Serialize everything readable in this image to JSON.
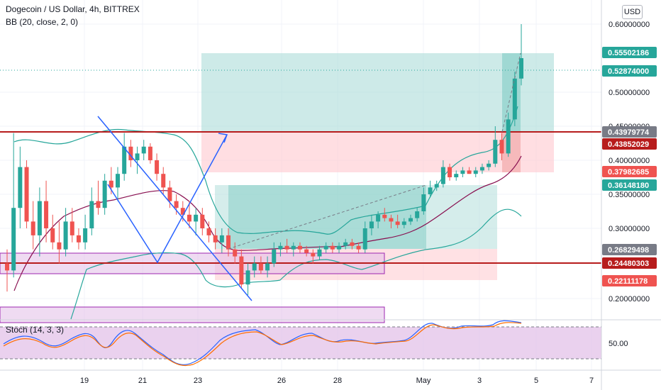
{
  "header": {
    "symbol_line": "Dogecoin / US Dollar, 4h, BITTREX",
    "indicator_line": "BB (20, close, 2, 0)",
    "currency_button": "USD"
  },
  "colors": {
    "up": "#26a69a",
    "down": "#ef5350",
    "bb_band": "#26a69a",
    "bb_basis": "#880e4f",
    "resistance": "#b71c1c",
    "purple_box": "#9c27b0",
    "profit_zone": "#b2dfdb",
    "loss_zone": "#ffcdd2",
    "stoch_k": "#2962ff",
    "stoch_d": "#ff6d00",
    "stoch_bg": "#e1bee7"
  },
  "price_axis": {
    "ticks": [
      "0.60000000",
      "0.50000000",
      "0.45000000",
      "0.40000000",
      "0.35000000",
      "0.30000000",
      "0.20000000"
    ],
    "tags": [
      {
        "label": "0.55502186",
        "color": "#26a69a"
      },
      {
        "label": "0.52874000",
        "color": "#26a69a"
      },
      {
        "label": "0.43979774",
        "color": "#787b86"
      },
      {
        "label": "0.43852029",
        "color": "#b71c1c"
      },
      {
        "label": "0.37982685",
        "color": "#ef5350"
      },
      {
        "label": "0.36148180",
        "color": "#26a69a"
      },
      {
        "label": "0.26829498",
        "color": "#787b86"
      },
      {
        "label": "0.24480303",
        "color": "#b71c1c"
      },
      {
        "label": "0.22111178",
        "color": "#ef5350"
      }
    ]
  },
  "stoch": {
    "title": "Stoch (14, 3, 3)",
    "axis_label": "50.00"
  },
  "time_axis": [
    "19",
    "21",
    "23",
    "26",
    "28",
    "May",
    "3",
    "5",
    "7"
  ],
  "chart_data": {
    "type": "candlestick",
    "title": "Dogecoin / US Dollar, 4h, BITTREX",
    "x": [
      "19",
      "21",
      "23",
      "26",
      "28",
      "May",
      "3",
      "5",
      "7"
    ],
    "y_ticks": [
      0.6,
      0.5,
      0.45,
      0.4,
      0.35,
      0.3,
      0.2
    ],
    "ylim": [
      0.15,
      0.62
    ],
    "price_levels": [
      0.55502186,
      0.52874,
      0.43979774,
      0.43852029,
      0.37982685,
      0.3614818,
      0.26829498,
      0.24480303,
      0.22111178
    ],
    "ohlc": [
      [
        0.25,
        0.27,
        0.21,
        0.24
      ],
      [
        0.24,
        0.44,
        0.23,
        0.33
      ],
      [
        0.33,
        0.42,
        0.3,
        0.39
      ],
      [
        0.39,
        0.4,
        0.3,
        0.31
      ],
      [
        0.31,
        0.34,
        0.27,
        0.29
      ],
      [
        0.29,
        0.36,
        0.26,
        0.34
      ],
      [
        0.34,
        0.37,
        0.28,
        0.3
      ],
      [
        0.3,
        0.32,
        0.27,
        0.28
      ],
      [
        0.28,
        0.31,
        0.25,
        0.27
      ],
      [
        0.27,
        0.33,
        0.26,
        0.31
      ],
      [
        0.31,
        0.33,
        0.28,
        0.29
      ],
      [
        0.29,
        0.3,
        0.27,
        0.28
      ],
      [
        0.28,
        0.32,
        0.27,
        0.3
      ],
      [
        0.3,
        0.36,
        0.29,
        0.34
      ],
      [
        0.34,
        0.37,
        0.32,
        0.33
      ],
      [
        0.33,
        0.38,
        0.32,
        0.37
      ],
      [
        0.37,
        0.39,
        0.35,
        0.36
      ],
      [
        0.36,
        0.39,
        0.34,
        0.38
      ],
      [
        0.38,
        0.44,
        0.37,
        0.42
      ],
      [
        0.42,
        0.43,
        0.39,
        0.4
      ],
      [
        0.4,
        0.42,
        0.38,
        0.41
      ],
      [
        0.41,
        0.43,
        0.4,
        0.42
      ],
      [
        0.42,
        0.425,
        0.395,
        0.4
      ],
      [
        0.4,
        0.41,
        0.37,
        0.38
      ],
      [
        0.38,
        0.39,
        0.35,
        0.36
      ],
      [
        0.36,
        0.37,
        0.33,
        0.34
      ],
      [
        0.34,
        0.35,
        0.32,
        0.33
      ],
      [
        0.33,
        0.34,
        0.31,
        0.32
      ],
      [
        0.32,
        0.34,
        0.3,
        0.31
      ],
      [
        0.31,
        0.33,
        0.29,
        0.32
      ],
      [
        0.32,
        0.33,
        0.29,
        0.3
      ],
      [
        0.3,
        0.31,
        0.28,
        0.29
      ],
      [
        0.29,
        0.3,
        0.27,
        0.28
      ],
      [
        0.28,
        0.3,
        0.265,
        0.29
      ],
      [
        0.29,
        0.3,
        0.26,
        0.27
      ],
      [
        0.27,
        0.28,
        0.25,
        0.26
      ],
      [
        0.26,
        0.27,
        0.215,
        0.22
      ],
      [
        0.22,
        0.25,
        0.205,
        0.24
      ],
      [
        0.24,
        0.26,
        0.23,
        0.25
      ],
      [
        0.25,
        0.26,
        0.235,
        0.24
      ],
      [
        0.24,
        0.26,
        0.23,
        0.25
      ],
      [
        0.25,
        0.28,
        0.245,
        0.27
      ],
      [
        0.27,
        0.28,
        0.26,
        0.275
      ],
      [
        0.275,
        0.285,
        0.265,
        0.27
      ],
      [
        0.27,
        0.28,
        0.26,
        0.275
      ],
      [
        0.275,
        0.28,
        0.265,
        0.27
      ],
      [
        0.27,
        0.275,
        0.26,
        0.265
      ],
      [
        0.265,
        0.27,
        0.25,
        0.26
      ],
      [
        0.26,
        0.275,
        0.255,
        0.27
      ],
      [
        0.27,
        0.28,
        0.265,
        0.275
      ],
      [
        0.275,
        0.28,
        0.265,
        0.27
      ],
      [
        0.27,
        0.28,
        0.265,
        0.275
      ],
      [
        0.275,
        0.285,
        0.27,
        0.28
      ],
      [
        0.28,
        0.285,
        0.27,
        0.275
      ],
      [
        0.275,
        0.28,
        0.265,
        0.27
      ],
      [
        0.27,
        0.31,
        0.265,
        0.3
      ],
      [
        0.3,
        0.32,
        0.29,
        0.31
      ],
      [
        0.31,
        0.325,
        0.3,
        0.32
      ],
      [
        0.32,
        0.33,
        0.31,
        0.315
      ],
      [
        0.315,
        0.32,
        0.3,
        0.31
      ],
      [
        0.31,
        0.32,
        0.3,
        0.305
      ],
      [
        0.305,
        0.315,
        0.3,
        0.31
      ],
      [
        0.31,
        0.32,
        0.305,
        0.315
      ],
      [
        0.315,
        0.33,
        0.31,
        0.325
      ],
      [
        0.325,
        0.36,
        0.32,
        0.35
      ],
      [
        0.35,
        0.37,
        0.345,
        0.36
      ],
      [
        0.36,
        0.37,
        0.355,
        0.365
      ],
      [
        0.365,
        0.4,
        0.36,
        0.39
      ],
      [
        0.39,
        0.395,
        0.37,
        0.375
      ],
      [
        0.375,
        0.385,
        0.37,
        0.38
      ],
      [
        0.38,
        0.39,
        0.375,
        0.385
      ],
      [
        0.385,
        0.39,
        0.38,
        0.38
      ],
      [
        0.38,
        0.39,
        0.375,
        0.385
      ],
      [
        0.385,
        0.395,
        0.38,
        0.39
      ],
      [
        0.39,
        0.4,
        0.385,
        0.395
      ],
      [
        0.395,
        0.45,
        0.39,
        0.43
      ],
      [
        0.43,
        0.44,
        0.4,
        0.41
      ],
      [
        0.41,
        0.47,
        0.405,
        0.46
      ],
      [
        0.46,
        0.53,
        0.45,
        0.52
      ],
      [
        0.52,
        0.6,
        0.51,
        0.55
      ]
    ]
  }
}
